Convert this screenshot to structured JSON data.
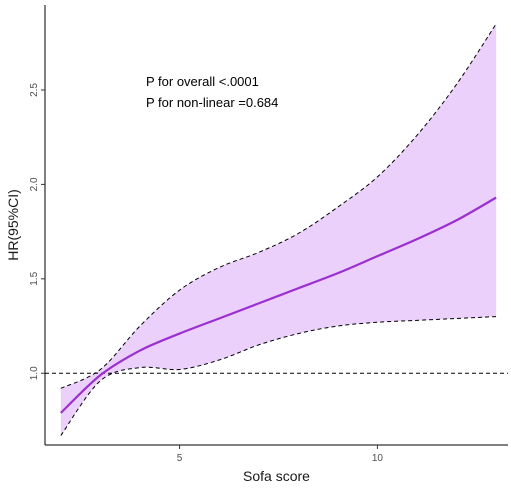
{
  "chart_data": {
    "type": "line",
    "xlabel": "Sofa score",
    "ylabel": "HR(95%CI)",
    "xlim": [
      1.6,
      13.3
    ],
    "ylim": [
      0.62,
      2.95
    ],
    "x_ticks": [
      5,
      10
    ],
    "x_tick_labels": [
      "5",
      "10"
    ],
    "y_ticks": [
      1.0,
      1.5,
      2.0,
      2.5
    ],
    "y_tick_labels": [
      "1.0",
      "1.5",
      "2.0",
      "2.5"
    ],
    "grid": false,
    "reference_line": 1.0,
    "annotations": [
      "P for overall <.0001",
      "P for non-linear =0.684"
    ],
    "colors": {
      "line": "#9b2fd1",
      "ci_fill": "#ead0fb",
      "ci_border": "#000000",
      "reference": "#000000",
      "axis": "#000000"
    },
    "series": [
      {
        "x": [
          2,
          3,
          4,
          5,
          6,
          7,
          8,
          9,
          10,
          11,
          12,
          13
        ],
        "y": [
          0.79,
          0.99,
          1.12,
          1.21,
          1.29,
          1.37,
          1.45,
          1.53,
          1.62,
          1.71,
          1.81,
          1.93
        ]
      }
    ],
    "ci_upper": {
      "x": [
        2,
        3,
        4,
        5,
        6,
        7,
        8,
        9,
        10,
        11,
        12,
        13
      ],
      "y": [
        0.92,
        1.02,
        1.25,
        1.44,
        1.56,
        1.64,
        1.74,
        1.88,
        2.04,
        2.26,
        2.53,
        2.85
      ]
    },
    "ci_lower": {
      "x": [
        2,
        3,
        4,
        5,
        6,
        7,
        8,
        9,
        10,
        11,
        12,
        13
      ],
      "y": [
        0.67,
        0.96,
        1.03,
        1.02,
        1.07,
        1.15,
        1.21,
        1.25,
        1.27,
        1.28,
        1.29,
        1.3
      ]
    }
  }
}
